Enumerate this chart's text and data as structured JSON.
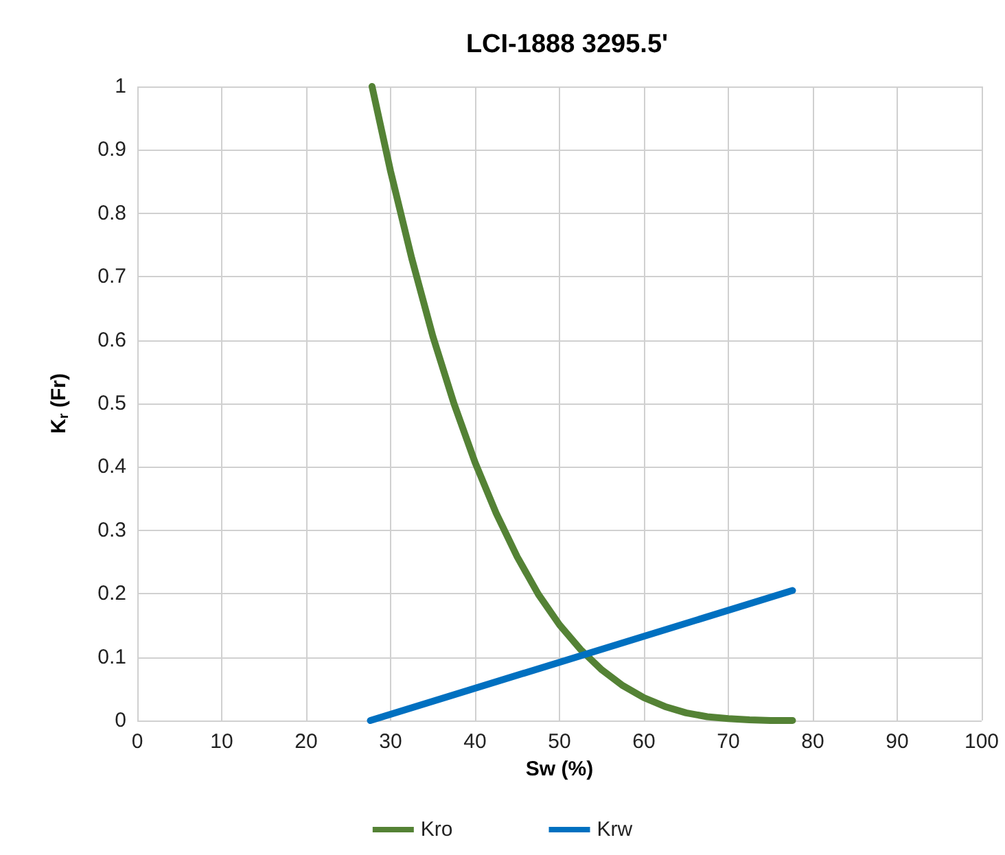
{
  "chart_data": {
    "type": "line",
    "title": "LCI-1888 3295.5'",
    "xlabel": "Sw (%)",
    "ylabel": "K$_{r}$ (Fr)",
    "xlim": [
      0,
      100
    ],
    "xticks": [
      0,
      10,
      20,
      30,
      40,
      50,
      60,
      70,
      80,
      90,
      100
    ],
    "ylim": [
      0,
      1
    ],
    "yticks": [
      0,
      0.1,
      0.2,
      0.3,
      0.4,
      0.5,
      0.6,
      0.7,
      0.8,
      0.9,
      1
    ],
    "grid": true,
    "legend": "bottom",
    "marker": "none",
    "line_style": "solid",
    "series": [
      {
        "name": "Kro",
        "color": "#548235",
        "x": [
          27.8,
          30,
          32.5,
          35,
          37.5,
          40,
          42.5,
          45,
          47.5,
          50,
          52.5,
          55,
          57.5,
          60,
          62.5,
          65,
          67.5,
          70,
          72.5,
          75,
          77.6
        ],
        "values": [
          1,
          0.866,
          0.729,
          0.606,
          0.5,
          0.407,
          0.327,
          0.258,
          0.199,
          0.151,
          0.112,
          0.08,
          0.055,
          0.036,
          0.022,
          0.012,
          0.006,
          0.003,
          0.001,
          0,
          0
        ]
      },
      {
        "name": "Krw",
        "color": "#0070c0",
        "x": [
          27.6,
          77.6
        ],
        "values": [
          0,
          0.205
        ]
      }
    ]
  }
}
